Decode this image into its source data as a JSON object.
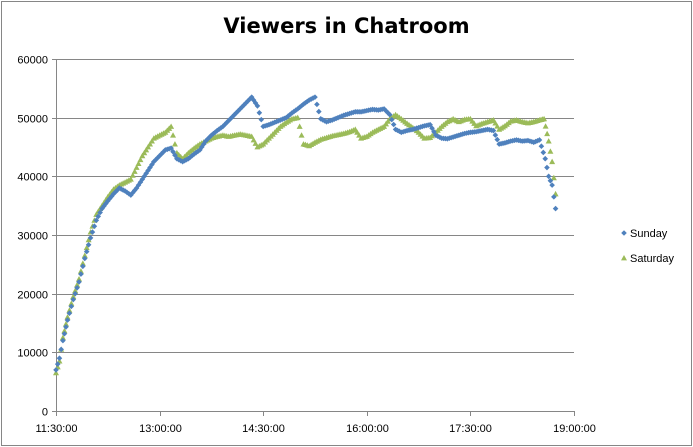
{
  "chart_data": {
    "type": "scatter",
    "title": "Viewers in Chatroom",
    "xlabel": "",
    "ylabel": "",
    "ylim": [
      0,
      60000
    ],
    "xlim": [
      "11:30:00",
      "19:00:00"
    ],
    "yticks": [
      "0",
      "10000",
      "20000",
      "30000",
      "40000",
      "50000",
      "60000"
    ],
    "xticks": [
      "11:30:00",
      "13:00:00",
      "14:30:00",
      "16:00:00",
      "17:30:00",
      "19:00:00"
    ],
    "grid": "horizontal",
    "legend_position": "right",
    "series": [
      {
        "name": "Sunday",
        "color": "#4f81bd",
        "marker": "diamond",
        "points": [
          [
            "11:30:00",
            7000
          ],
          [
            "11:33:00",
            9000
          ],
          [
            "11:36:00",
            12000
          ],
          [
            "11:40:00",
            15500
          ],
          [
            "11:45:00",
            19000
          ],
          [
            "11:50:00",
            22000
          ],
          [
            "11:55:00",
            26000
          ],
          [
            "12:00:00",
            29500
          ],
          [
            "12:05:00",
            32500
          ],
          [
            "12:10:00",
            34500
          ],
          [
            "12:15:00",
            35800
          ],
          [
            "12:20:00",
            37000
          ],
          [
            "12:25:00",
            38000
          ],
          [
            "12:30:00",
            37500
          ],
          [
            "12:35:00",
            36800
          ],
          [
            "12:40:00",
            38000
          ],
          [
            "12:45:00",
            39500
          ],
          [
            "12:50:00",
            41000
          ],
          [
            "12:55:00",
            42500
          ],
          [
            "13:00:00",
            43500
          ],
          [
            "13:05:00",
            44500
          ],
          [
            "13:10:00",
            44800
          ],
          [
            "13:15:00",
            43000
          ],
          [
            "13:20:00",
            42500
          ],
          [
            "13:25:00",
            43000
          ],
          [
            "13:30:00",
            43800
          ],
          [
            "13:35:00",
            44500
          ],
          [
            "13:40:00",
            46000
          ],
          [
            "13:45:00",
            47000
          ],
          [
            "13:50:00",
            47800
          ],
          [
            "13:55:00",
            48500
          ],
          [
            "14:00:00",
            49500
          ],
          [
            "14:05:00",
            50500
          ],
          [
            "14:10:00",
            51500
          ],
          [
            "14:15:00",
            52500
          ],
          [
            "14:20:00",
            53500
          ],
          [
            "14:25:00",
            52000
          ],
          [
            "14:30:00",
            48500
          ],
          [
            "14:35:00",
            48800
          ],
          [
            "14:40:00",
            49200
          ],
          [
            "14:45:00",
            49600
          ],
          [
            "14:50:00",
            50000
          ],
          [
            "14:55:00",
            50800
          ],
          [
            "15:00:00",
            51500
          ],
          [
            "15:05:00",
            52300
          ],
          [
            "15:10:00",
            53000
          ],
          [
            "15:15:00",
            53500
          ],
          [
            "15:20:00",
            49800
          ],
          [
            "15:25:00",
            49300
          ],
          [
            "15:30:00",
            49600
          ],
          [
            "15:35:00",
            50000
          ],
          [
            "15:40:00",
            50400
          ],
          [
            "15:45:00",
            50700
          ],
          [
            "15:50:00",
            51000
          ],
          [
            "15:55:00",
            51000
          ],
          [
            "16:00:00",
            51200
          ],
          [
            "16:05:00",
            51400
          ],
          [
            "16:10:00",
            51300
          ],
          [
            "16:15:00",
            51500
          ],
          [
            "16:20:00",
            50500
          ],
          [
            "16:25:00",
            48000
          ],
          [
            "16:30:00",
            47500
          ],
          [
            "16:35:00",
            47800
          ],
          [
            "16:40:00",
            48000
          ],
          [
            "16:45:00",
            48300
          ],
          [
            "16:50:00",
            48600
          ],
          [
            "16:55:00",
            48800
          ],
          [
            "17:00:00",
            47000
          ],
          [
            "17:05:00",
            46500
          ],
          [
            "17:10:00",
            46400
          ],
          [
            "17:15:00",
            46700
          ],
          [
            "17:20:00",
            47000
          ],
          [
            "17:25:00",
            47300
          ],
          [
            "17:30:00",
            47500
          ],
          [
            "17:35:00",
            47600
          ],
          [
            "17:40:00",
            47800
          ],
          [
            "17:45:00",
            48000
          ],
          [
            "17:50:00",
            47800
          ],
          [
            "17:55:00",
            45500
          ],
          [
            "18:00:00",
            45700
          ],
          [
            "18:05:00",
            46000
          ],
          [
            "18:10:00",
            46200
          ],
          [
            "18:15:00",
            46000
          ],
          [
            "18:20:00",
            46100
          ],
          [
            "18:25:00",
            45800
          ],
          [
            "18:30:00",
            46200
          ],
          [
            "18:35:00",
            43000
          ],
          [
            "18:38:00",
            40000
          ],
          [
            "18:41:00",
            38500
          ],
          [
            "18:44:00",
            34500
          ]
        ]
      },
      {
        "name": "Saturday",
        "color": "#9bbb59",
        "marker": "triangle",
        "points": [
          [
            "11:30:00",
            6500
          ],
          [
            "11:33:00",
            8500
          ],
          [
            "11:36:00",
            12500
          ],
          [
            "11:40:00",
            16000
          ],
          [
            "11:45:00",
            19500
          ],
          [
            "11:50:00",
            22500
          ],
          [
            "11:55:00",
            26500
          ],
          [
            "12:00:00",
            30500
          ],
          [
            "12:05:00",
            33500
          ],
          [
            "12:10:00",
            35000
          ],
          [
            "12:15:00",
            36500
          ],
          [
            "12:20:00",
            37800
          ],
          [
            "12:25:00",
            38500
          ],
          [
            "12:30:00",
            39000
          ],
          [
            "12:35:00",
            39500
          ],
          [
            "12:40:00",
            41500
          ],
          [
            "12:45:00",
            43500
          ],
          [
            "12:50:00",
            45000
          ],
          [
            "12:55:00",
            46500
          ],
          [
            "13:00:00",
            47000
          ],
          [
            "13:05:00",
            47500
          ],
          [
            "13:10:00",
            48500
          ],
          [
            "13:15:00",
            44000
          ],
          [
            "13:20:00",
            43000
          ],
          [
            "13:25:00",
            44000
          ],
          [
            "13:30:00",
            44800
          ],
          [
            "13:35:00",
            45500
          ],
          [
            "13:40:00",
            46000
          ],
          [
            "13:45:00",
            46500
          ],
          [
            "13:50:00",
            46800
          ],
          [
            "13:55:00",
            47000
          ],
          [
            "14:00:00",
            46800
          ],
          [
            "14:05:00",
            47000
          ],
          [
            "14:10:00",
            47200
          ],
          [
            "14:15:00",
            47000
          ],
          [
            "14:20:00",
            46800
          ],
          [
            "14:25:00",
            45000
          ],
          [
            "14:30:00",
            45500
          ],
          [
            "14:35:00",
            46500
          ],
          [
            "14:40:00",
            47500
          ],
          [
            "14:45:00",
            48500
          ],
          [
            "14:50:00",
            49200
          ],
          [
            "14:55:00",
            49800
          ],
          [
            "15:00:00",
            50000
          ],
          [
            "15:05:00",
            45500
          ],
          [
            "15:10:00",
            45200
          ],
          [
            "15:15:00",
            45800
          ],
          [
            "15:20:00",
            46300
          ],
          [
            "15:25:00",
            46600
          ],
          [
            "15:30:00",
            46900
          ],
          [
            "15:35:00",
            47100
          ],
          [
            "15:40:00",
            47300
          ],
          [
            "15:45:00",
            47600
          ],
          [
            "15:50:00",
            48000
          ],
          [
            "15:55:00",
            46500
          ],
          [
            "16:00:00",
            46800
          ],
          [
            "16:05:00",
            47500
          ],
          [
            "16:10:00",
            48000
          ],
          [
            "16:15:00",
            48500
          ],
          [
            "16:20:00",
            49800
          ],
          [
            "16:25:00",
            50500
          ],
          [
            "16:30:00",
            49800
          ],
          [
            "16:35:00",
            49000
          ],
          [
            "16:40:00",
            48300
          ],
          [
            "16:45:00",
            47500
          ],
          [
            "16:50:00",
            46500
          ],
          [
            "16:55:00",
            46600
          ],
          [
            "17:00:00",
            47500
          ],
          [
            "17:05:00",
            48500
          ],
          [
            "17:10:00",
            49300
          ],
          [
            "17:15:00",
            49800
          ],
          [
            "17:20:00",
            49300
          ],
          [
            "17:25:00",
            49700
          ],
          [
            "17:30:00",
            49800
          ],
          [
            "17:35:00",
            48600
          ],
          [
            "17:40:00",
            49000
          ],
          [
            "17:45:00",
            49300
          ],
          [
            "17:50:00",
            49600
          ],
          [
            "17:55:00",
            48000
          ],
          [
            "18:00:00",
            48600
          ],
          [
            "18:05:00",
            49400
          ],
          [
            "18:10:00",
            49600
          ],
          [
            "18:15:00",
            49300
          ],
          [
            "18:20:00",
            49100
          ],
          [
            "18:25:00",
            49300
          ],
          [
            "18:30:00",
            49600
          ],
          [
            "18:34:00",
            49800
          ],
          [
            "18:38:00",
            46000
          ],
          [
            "18:41:00",
            42500
          ],
          [
            "18:44:00",
            37000
          ]
        ]
      }
    ]
  }
}
